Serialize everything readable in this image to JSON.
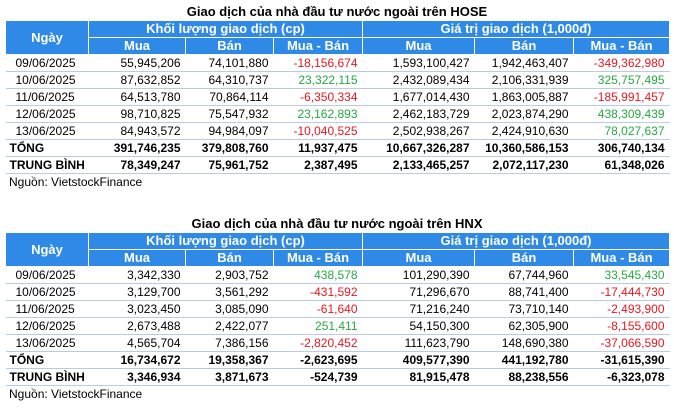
{
  "tables": [
    {
      "title": "Giao dịch của nhà đầu tư nước ngoài trên HOSE",
      "header": {
        "date": "Ngày",
        "group1": "Khối lượng giao dịch (cp)",
        "group2": "Giá trị giao dịch (1,000đ)",
        "mua": "Mua",
        "ban": "Bán",
        "net": "Mua - Bán"
      },
      "rows": [
        {
          "date": "09/06/2025",
          "kl_mua": "55,945,206",
          "kl_ban": "74,101,880",
          "kl_net": "-18,156,674",
          "kl_sign": "neg",
          "gt_mua": "1,593,100,427",
          "gt_ban": "1,942,463,407",
          "gt_net": "-349,362,980",
          "gt_sign": "neg"
        },
        {
          "date": "10/06/2025",
          "kl_mua": "87,632,852",
          "kl_ban": "64,310,737",
          "kl_net": "23,322,115",
          "kl_sign": "pos",
          "gt_mua": "2,432,089,434",
          "gt_ban": "2,106,331,939",
          "gt_net": "325,757,495",
          "gt_sign": "pos"
        },
        {
          "date": "11/06/2025",
          "kl_mua": "64,513,780",
          "kl_ban": "70,864,114",
          "kl_net": "-6,350,334",
          "kl_sign": "neg",
          "gt_mua": "1,677,014,430",
          "gt_ban": "1,863,005,887",
          "gt_net": "-185,991,457",
          "gt_sign": "neg"
        },
        {
          "date": "12/06/2025",
          "kl_mua": "98,710,825",
          "kl_ban": "75,547,932",
          "kl_net": "23,162,893",
          "kl_sign": "pos",
          "gt_mua": "2,462,183,729",
          "gt_ban": "2,023,874,290",
          "gt_net": "438,309,439",
          "gt_sign": "pos"
        },
        {
          "date": "13/06/2025",
          "kl_mua": "84,943,572",
          "kl_ban": "94,984,097",
          "kl_net": "-10,040,525",
          "kl_sign": "neg",
          "gt_mua": "2,502,938,267",
          "gt_ban": "2,424,910,630",
          "gt_net": "78,027,637",
          "gt_sign": "pos"
        }
      ],
      "totals": [
        {
          "date": "TỔNG",
          "kl_mua": "391,746,235",
          "kl_ban": "379,808,760",
          "kl_net": "11,937,475",
          "gt_mua": "10,667,326,287",
          "gt_ban": "10,360,586,153",
          "gt_net": "306,740,134"
        },
        {
          "date": "TRUNG BÌNH",
          "kl_mua": "78,349,247",
          "kl_ban": "75,961,752",
          "kl_net": "2,387,495",
          "gt_mua": "2,133,465,257",
          "gt_ban": "2,072,117,230",
          "gt_net": "61,348,026"
        }
      ],
      "source": "Nguồn: VietstockFinance"
    },
    {
      "title": "Giao dịch của nhà đầu tư nước ngoài trên HNX",
      "header": {
        "date": "Ngày",
        "group1": "Khối lượng giao dịch (cp)",
        "group2": "Giá trị giao dịch (1,000đ)",
        "mua": "Mua",
        "ban": "Bán",
        "net": "Mua - Bán"
      },
      "rows": [
        {
          "date": "09/06/2025",
          "kl_mua": "3,342,330",
          "kl_ban": "2,903,752",
          "kl_net": "438,578",
          "kl_sign": "pos",
          "gt_mua": "101,290,390",
          "gt_ban": "67,744,960",
          "gt_net": "33,545,430",
          "gt_sign": "pos"
        },
        {
          "date": "10/06/2025",
          "kl_mua": "3,129,700",
          "kl_ban": "3,561,292",
          "kl_net": "-431,592",
          "kl_sign": "neg",
          "gt_mua": "71,296,670",
          "gt_ban": "88,741,400",
          "gt_net": "-17,444,730",
          "gt_sign": "neg"
        },
        {
          "date": "11/06/2025",
          "kl_mua": "3,023,450",
          "kl_ban": "3,085,090",
          "kl_net": "-61,640",
          "kl_sign": "neg",
          "gt_mua": "71,216,240",
          "gt_ban": "73,710,140",
          "gt_net": "-2,493,900",
          "gt_sign": "neg"
        },
        {
          "date": "12/06/2025",
          "kl_mua": "2,673,488",
          "kl_ban": "2,422,077",
          "kl_net": "251,411",
          "kl_sign": "pos",
          "gt_mua": "54,150,300",
          "gt_ban": "62,305,900",
          "gt_net": "-8,155,600",
          "gt_sign": "neg"
        },
        {
          "date": "13/06/2025",
          "kl_mua": "4,565,704",
          "kl_ban": "7,386,156",
          "kl_net": "-2,820,452",
          "kl_sign": "neg",
          "gt_mua": "111,623,790",
          "gt_ban": "148,690,380",
          "gt_net": "-37,066,590",
          "gt_sign": "neg"
        }
      ],
      "totals": [
        {
          "date": "TỔNG",
          "kl_mua": "16,734,672",
          "kl_ban": "19,358,367",
          "kl_net": "-2,623,695",
          "gt_mua": "409,577,390",
          "gt_ban": "441,192,780",
          "gt_net": "-31,615,390"
        },
        {
          "date": "TRUNG BÌNH",
          "kl_mua": "3,346,934",
          "kl_ban": "3,871,673",
          "kl_net": "-524,739",
          "gt_mua": "81,915,478",
          "gt_ban": "88,238,556",
          "gt_net": "-6,323,078"
        }
      ],
      "source": "Nguồn: VietstockFinance"
    }
  ],
  "colors": {
    "header_bg": "#2e8ae6",
    "negative": "#e8171f",
    "positive": "#27a844"
  }
}
